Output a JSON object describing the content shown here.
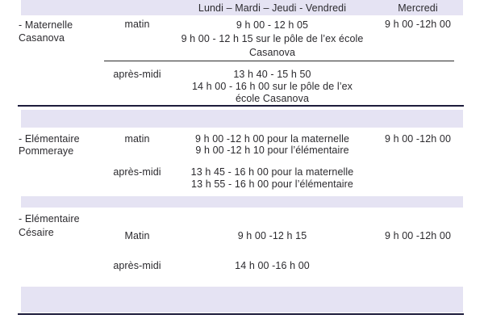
{
  "table": {
    "header": {
      "weekdays_label": "Lundi – Mardi – Jeudi - Vendredi",
      "wednesday_label": "Mercredi"
    },
    "sections": [
      {
        "school": "- Maternelle\nCasanova",
        "morning": {
          "period": "matin",
          "times": "9 h 00 - 12 h 05\n9 h 00 - 12 h 15 sur le pôle de l’ex école\nCasanova",
          "wednesday": "9 h 00 -12h 00"
        },
        "afternoon": {
          "period": "après-midi",
          "times": "13 h 40 - 15 h 50\n14 h 00 - 16 h 00 sur le pôle de l’ex\nécole Casanova"
        }
      },
      {
        "school": "- Elémentaire\nPommeraye",
        "morning": {
          "period": "matin",
          "times": "9 h 00 -12 h 00 pour la maternelle\n9 h 00 -12 h 10 pour l’élémentaire",
          "wednesday": "9 h 00 -12h 00"
        },
        "afternoon": {
          "period": "après-midi",
          "times": "13 h 45 - 16 h 00 pour la maternelle\n13 h 55 - 16 h 00  pour l’élémentaire"
        }
      },
      {
        "school": "- Elémentaire\nCésaire",
        "morning": {
          "period": "Matin",
          "times": "9 h 00 -12 h 15",
          "wednesday": "9 h 00 -12h 00"
        },
        "afternoon": {
          "period": "après-midi",
          "times": "14 h 00 -16 h 00"
        }
      }
    ],
    "colors": {
      "band_lavender": "#e5e3f3",
      "dark_rule": "#1d1c3c",
      "row_rule": "#2b2b2b",
      "text": "#2b2a2e",
      "background": "#ffffff"
    }
  }
}
